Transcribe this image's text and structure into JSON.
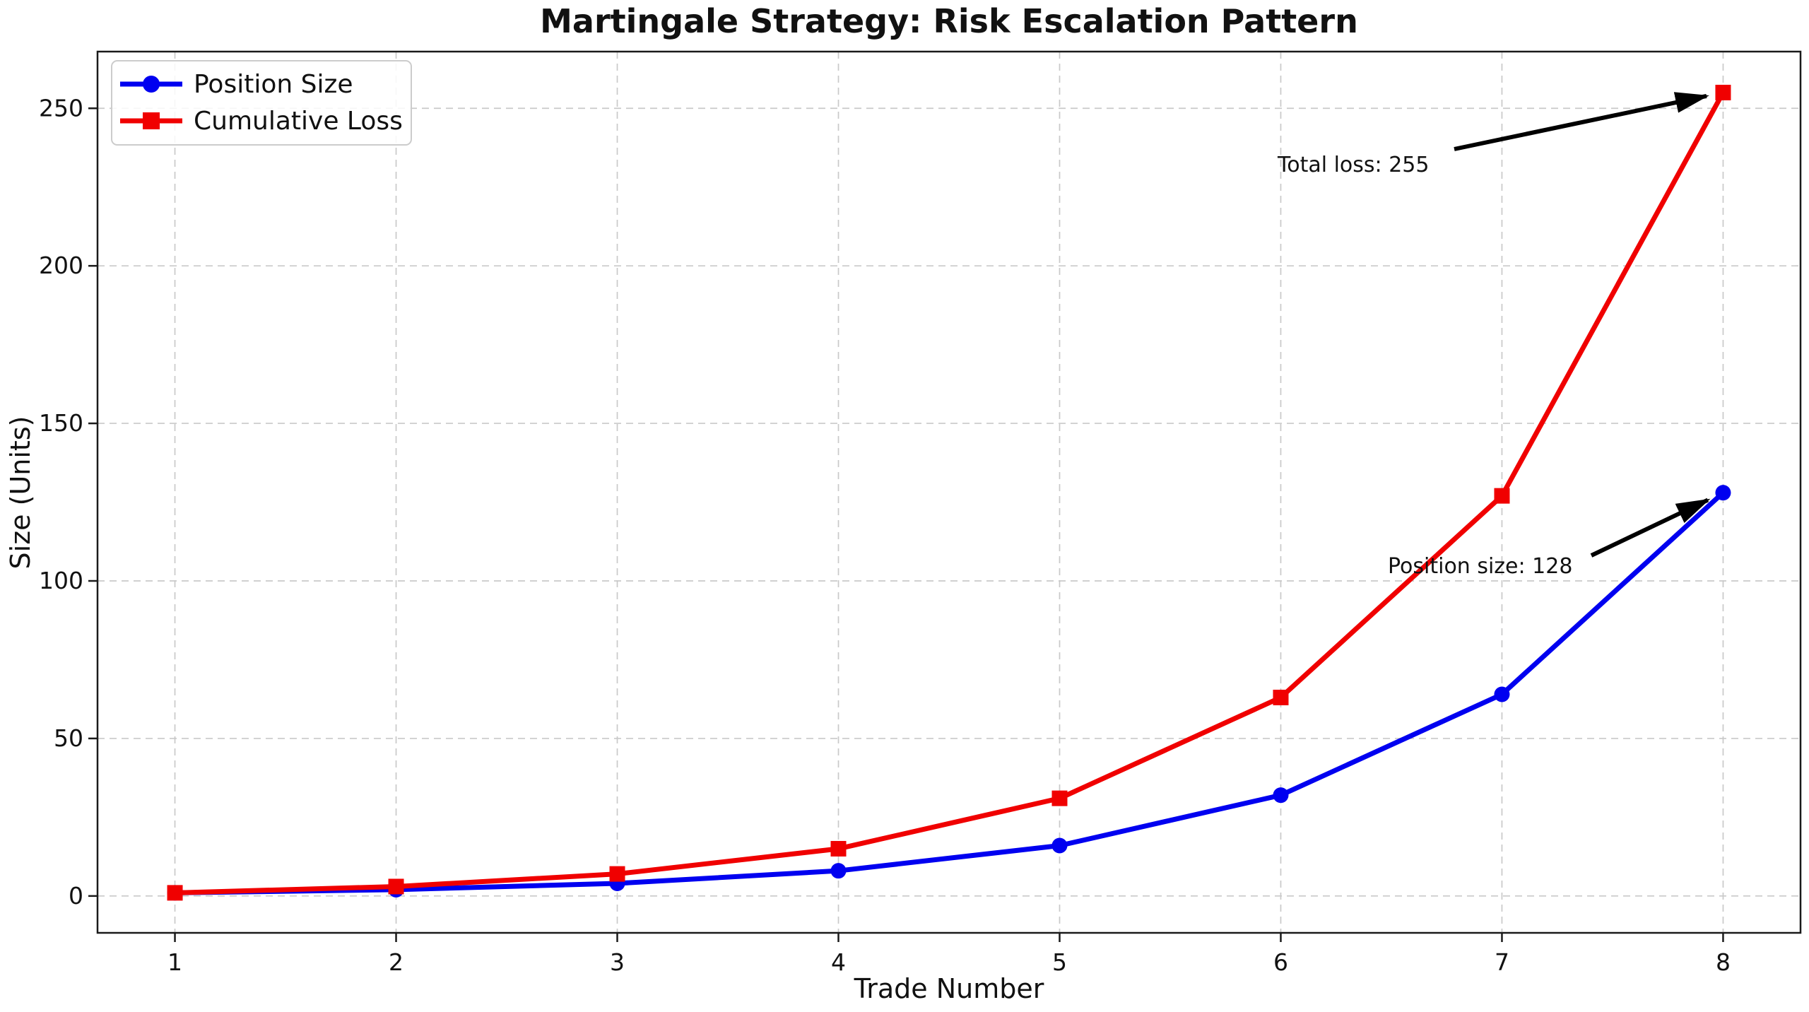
{
  "chart_data": {
    "type": "line",
    "title": "Martingale Strategy: Risk Escalation Pattern",
    "xlabel": "Trade Number",
    "ylabel": "Size (Units)",
    "x": [
      1,
      2,
      3,
      4,
      5,
      6,
      7,
      8
    ],
    "series": [
      {
        "name": "Position Size",
        "values": [
          1,
          2,
          4,
          8,
          16,
          32,
          64,
          128
        ],
        "color": "#0000f0",
        "marker": "circle"
      },
      {
        "name": "Cumulative Loss",
        "values": [
          1,
          3,
          7,
          15,
          31,
          63,
          127,
          255
        ],
        "color": "#f00000",
        "marker": "square"
      }
    ],
    "xticks": [
      1,
      2,
      3,
      4,
      5,
      6,
      7,
      8
    ],
    "yticks": [
      0,
      50,
      100,
      150,
      200,
      250
    ],
    "xlim": [
      0.65,
      8.35
    ],
    "ylim": [
      -11.7,
      268
    ],
    "grid": true,
    "legend_position": "upper-left",
    "annotations": [
      {
        "text": "Total loss: 255",
        "target": {
          "x": 8,
          "y": 255
        }
      },
      {
        "text": "Position size: 128",
        "target": {
          "x": 8,
          "y": 128
        }
      }
    ],
    "palette": {
      "background": "#ffffff",
      "grid": "#c9c9c9",
      "spine": "#1a1a1a",
      "text": "#111111",
      "arrow": "#000000",
      "legend_border": "#cccccc"
    }
  }
}
